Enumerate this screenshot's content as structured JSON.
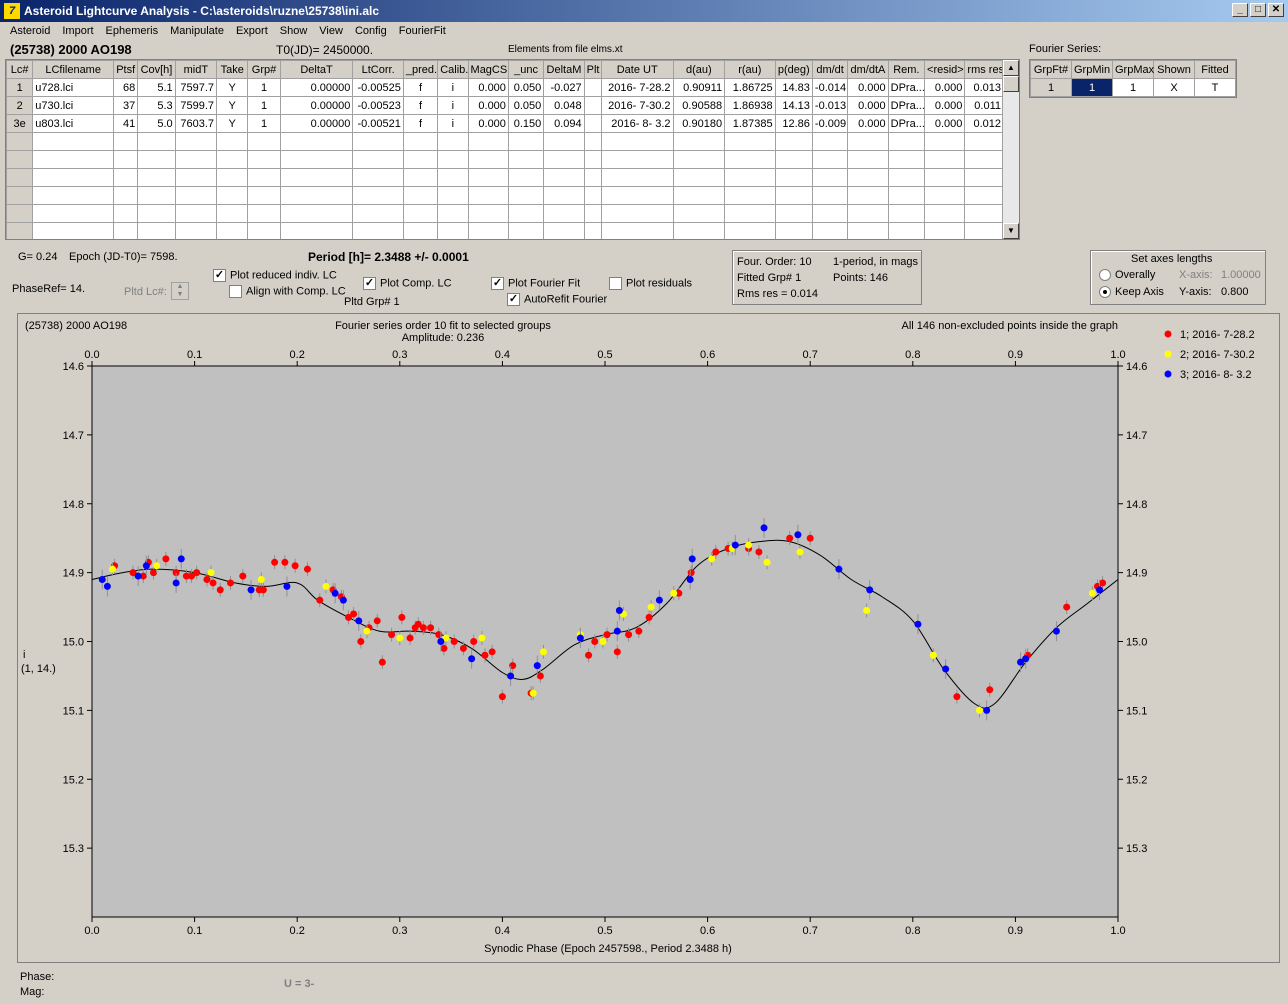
{
  "window": {
    "title": "Asteroid Lightcurve Analysis - C:\\asteroids\\ruzne\\25738\\ini.alc",
    "min": "_",
    "max": "□",
    "close": "✕"
  },
  "menu": [
    "Asteroid",
    "Import",
    "Ephemeris",
    "Manipulate",
    "Export",
    "Show",
    "View",
    "Config",
    "FourierFit"
  ],
  "header": {
    "asteroid": "(25738) 2000 AO198",
    "t0": "T0(JD)= 2450000.",
    "elements": "Elements from file elms.xt"
  },
  "table": {
    "columns": [
      "Lc#",
      "LCfilename",
      "Ptsf",
      "Cov[h]",
      "midT",
      "Take",
      "Grp#",
      "DeltaT",
      "LtCorr.",
      "_pred.",
      "Calib.",
      "MagCS",
      "_unc",
      "DeltaM",
      "Plt",
      "Date UT",
      "d(au)",
      "r(au)",
      "p(deg)",
      "dm/dt",
      "dm/dtA",
      "Rem.",
      "<resid>",
      "rms res"
    ],
    "rows": [
      [
        "1",
        "u728.lci",
        "68",
        "5.1",
        "7597.7",
        "Y",
        "1",
        "0.00000",
        "-0.00525",
        "f",
        "i",
        "0.000",
        "0.050",
        "-0.027",
        "",
        "2016- 7-28.2",
        "0.90911",
        "1.86725",
        "14.83",
        "-0.014",
        "0.000",
        "DPra...",
        "0.000",
        "0.013"
      ],
      [
        "2",
        "u730.lci",
        "37",
        "5.3",
        "7599.7",
        "Y",
        "1",
        "0.00000",
        "-0.00523",
        "f",
        "i",
        "0.000",
        "0.050",
        "0.048",
        "",
        "2016- 7-30.2",
        "0.90588",
        "1.86938",
        "14.13",
        "-0.013",
        "0.000",
        "DPra...",
        "0.000",
        "0.011"
      ],
      [
        "3e",
        "u803.lci",
        "41",
        "5.0",
        "7603.7",
        "Y",
        "1",
        "0.00000",
        "-0.00521",
        "f",
        "i",
        "0.000",
        "0.150",
        "0.094",
        "",
        "2016- 8- 3.2",
        "0.90180",
        "1.87385",
        "12.86",
        "-0.009",
        "0.000",
        "DPra...",
        "0.000",
        "0.012"
      ]
    ]
  },
  "fourier": {
    "label": "Fourier Series:",
    "columns": [
      "GrpFt#",
      "GrpMin",
      "GrpMax",
      "Shown",
      "Fitted"
    ],
    "row": [
      "1",
      "1",
      "1",
      "X",
      "T"
    ]
  },
  "controls": {
    "g": "G= 0.24",
    "epoch": "Epoch (JD-T0)= 7598.",
    "period": "Period [h]= 2.3488 +/- 0.0001",
    "phaseref": "PhaseRef= 14.",
    "pltdlc": "Pltd Lc#:",
    "pltdgrp": "Pltd Grp#  1",
    "plot_reduced": "Plot reduced indiv. LC",
    "align": "Align with Comp. LC",
    "plot_comp": "Plot Comp. LC",
    "plot_fourier": "Plot Fourier Fit",
    "autorefit": "AutoRefit Fourier",
    "plot_residuals": "Plot residuals",
    "four_order": "Four. Order: 10",
    "one_period": "1-period, in mags",
    "fitted_grp": "Fitted Grp# 1",
    "points": "Points: 146",
    "rms": "Rms res     = 0.014",
    "axes_title": "Set axes lengths",
    "overally": "Overally",
    "keep_axis": "Keep Axis",
    "x_axis_label": "X-axis:",
    "x_axis_val": "1.00000",
    "y_axis_label": "Y-axis:",
    "y_axis_val": "0.800"
  },
  "graph": {
    "title_left": "(25738) 2000 AO198",
    "title_center": "Fourier series order 10 fit to selected groups",
    "amplitude": "Amplitude: 0.236",
    "title_right": "All 146 non-excluded points inside the graph",
    "ylabel": "i",
    "ylabel2": "(1, 14.)",
    "xlabel": "Synodic Phase (Epoch 2457598., Period 2.3488 h)"
  },
  "footer": {
    "phase": "Phase:",
    "mag": "Mag:",
    "u": "U = 3-"
  },
  "chart_data": {
    "type": "scatter",
    "xlim": [
      0,
      1
    ],
    "ylim": [
      15.4,
      14.6
    ],
    "y_inverted": true,
    "xticks": [
      0.0,
      0.1,
      0.2,
      0.3,
      0.4,
      0.5,
      0.6,
      0.7,
      0.8,
      0.9,
      1.0
    ],
    "xticklabels": [
      "0.0",
      "0.1",
      "0.2",
      "0.3",
      "0.4",
      "0.5",
      "0.6",
      "0.7",
      "0.8",
      "0.9",
      "1.0"
    ],
    "yticks": [
      14.6,
      14.7,
      14.8,
      14.9,
      15.0,
      15.1,
      15.2,
      15.3
    ],
    "yticklabels": [
      "14.6",
      "14.7",
      "14.8",
      "14.9",
      "15.0",
      "15.1",
      "15.2",
      "15.3"
    ],
    "legend_position": "right",
    "series": [
      {
        "name": "1; 2016- 7-28.2",
        "color": "#ff0000",
        "points": [
          [
            0.022,
            14.89
          ],
          [
            0.04,
            14.9
          ],
          [
            0.05,
            14.905
          ],
          [
            0.055,
            14.885
          ],
          [
            0.06,
            14.9
          ],
          [
            0.072,
            14.88
          ],
          [
            0.082,
            14.9
          ],
          [
            0.092,
            14.905
          ],
          [
            0.097,
            14.905
          ],
          [
            0.102,
            14.9
          ],
          [
            0.112,
            14.91
          ],
          [
            0.118,
            14.915
          ],
          [
            0.125,
            14.925
          ],
          [
            0.135,
            14.915
          ],
          [
            0.147,
            14.905
          ],
          [
            0.163,
            14.925
          ],
          [
            0.167,
            14.925
          ],
          [
            0.178,
            14.885
          ],
          [
            0.188,
            14.885
          ],
          [
            0.198,
            14.89
          ],
          [
            0.21,
            14.895
          ],
          [
            0.222,
            14.94
          ],
          [
            0.235,
            14.925
          ],
          [
            0.243,
            14.935
          ],
          [
            0.25,
            14.965
          ],
          [
            0.255,
            14.96
          ],
          [
            0.262,
            15.0
          ],
          [
            0.27,
            14.98
          ],
          [
            0.278,
            14.97
          ],
          [
            0.283,
            15.03
          ],
          [
            0.292,
            14.99
          ],
          [
            0.302,
            14.965
          ],
          [
            0.31,
            14.995
          ],
          [
            0.315,
            14.98
          ],
          [
            0.318,
            14.975
          ],
          [
            0.323,
            14.98
          ],
          [
            0.33,
            14.98
          ],
          [
            0.338,
            14.99
          ],
          [
            0.343,
            15.01
          ],
          [
            0.353,
            15.0
          ],
          [
            0.362,
            15.01
          ],
          [
            0.372,
            15.0
          ],
          [
            0.383,
            15.02
          ],
          [
            0.39,
            15.015
          ],
          [
            0.4,
            15.08
          ],
          [
            0.41,
            15.035
          ],
          [
            0.428,
            15.075
          ],
          [
            0.437,
            15.05
          ],
          [
            0.484,
            15.02
          ],
          [
            0.49,
            15.0
          ],
          [
            0.502,
            14.99
          ],
          [
            0.512,
            15.015
          ],
          [
            0.523,
            14.99
          ],
          [
            0.533,
            14.985
          ],
          [
            0.543,
            14.965
          ],
          [
            0.572,
            14.93
          ],
          [
            0.584,
            14.9
          ],
          [
            0.608,
            14.87
          ],
          [
            0.62,
            14.865
          ],
          [
            0.64,
            14.865
          ],
          [
            0.65,
            14.87
          ],
          [
            0.68,
            14.85
          ],
          [
            0.7,
            14.85
          ],
          [
            0.843,
            15.08
          ],
          [
            0.875,
            15.07
          ],
          [
            0.912,
            15.02
          ],
          [
            0.95,
            14.95
          ],
          [
            0.98,
            14.92
          ],
          [
            0.985,
            14.915
          ]
        ]
      },
      {
        "name": "2; 2016- 7-30.2",
        "color": "#ffff00",
        "points": [
          [
            0.02,
            14.895
          ],
          [
            0.063,
            14.89
          ],
          [
            0.116,
            14.9
          ],
          [
            0.165,
            14.91
          ],
          [
            0.228,
            14.92
          ],
          [
            0.268,
            14.985
          ],
          [
            0.3,
            14.995
          ],
          [
            0.345,
            14.995
          ],
          [
            0.38,
            14.995
          ],
          [
            0.43,
            15.075
          ],
          [
            0.44,
            15.015
          ],
          [
            0.476,
            14.99
          ],
          [
            0.498,
            15.0
          ],
          [
            0.518,
            14.96
          ],
          [
            0.545,
            14.95
          ],
          [
            0.567,
            14.93
          ],
          [
            0.604,
            14.88
          ],
          [
            0.624,
            14.865
          ],
          [
            0.64,
            14.86
          ],
          [
            0.658,
            14.885
          ],
          [
            0.69,
            14.87
          ],
          [
            0.755,
            14.955
          ],
          [
            0.82,
            15.02
          ],
          [
            0.865,
            15.1
          ],
          [
            0.975,
            14.93
          ]
        ]
      },
      {
        "name": "3; 2016- 8- 3.2",
        "color": "#0000ff",
        "points": [
          [
            0.01,
            14.91
          ],
          [
            0.015,
            14.92
          ],
          [
            0.045,
            14.905
          ],
          [
            0.053,
            14.89
          ],
          [
            0.082,
            14.915
          ],
          [
            0.087,
            14.88
          ],
          [
            0.155,
            14.925
          ],
          [
            0.19,
            14.92
          ],
          [
            0.237,
            14.93
          ],
          [
            0.245,
            14.94
          ],
          [
            0.26,
            14.97
          ],
          [
            0.34,
            15.0
          ],
          [
            0.37,
            15.025
          ],
          [
            0.408,
            15.05
          ],
          [
            0.434,
            15.035
          ],
          [
            0.476,
            14.995
          ],
          [
            0.512,
            14.985
          ],
          [
            0.514,
            14.955
          ],
          [
            0.553,
            14.94
          ],
          [
            0.583,
            14.91
          ],
          [
            0.585,
            14.88
          ],
          [
            0.627,
            14.86
          ],
          [
            0.655,
            14.835
          ],
          [
            0.688,
            14.845
          ],
          [
            0.728,
            14.895
          ],
          [
            0.758,
            14.925
          ],
          [
            0.805,
            14.975
          ],
          [
            0.832,
            15.04
          ],
          [
            0.872,
            15.1
          ],
          [
            0.905,
            15.03
          ],
          [
            0.91,
            15.025
          ],
          [
            0.94,
            14.985
          ],
          [
            0.982,
            14.925
          ]
        ]
      }
    ],
    "fit_curve": [
      [
        0.0,
        14.91
      ],
      [
        0.03,
        14.9
      ],
      [
        0.06,
        14.895
      ],
      [
        0.1,
        14.9
      ],
      [
        0.14,
        14.915
      ],
      [
        0.17,
        14.92
      ],
      [
        0.2,
        14.915
      ],
      [
        0.22,
        14.94
      ],
      [
        0.25,
        14.965
      ],
      [
        0.28,
        14.985
      ],
      [
        0.31,
        14.985
      ],
      [
        0.34,
        14.99
      ],
      [
        0.37,
        15.01
      ],
      [
        0.4,
        15.045
      ],
      [
        0.42,
        15.055
      ],
      [
        0.44,
        15.04
      ],
      [
        0.47,
        15.005
      ],
      [
        0.5,
        14.99
      ],
      [
        0.53,
        14.98
      ],
      [
        0.56,
        14.945
      ],
      [
        0.59,
        14.89
      ],
      [
        0.62,
        14.865
      ],
      [
        0.65,
        14.855
      ],
      [
        0.68,
        14.855
      ],
      [
        0.71,
        14.875
      ],
      [
        0.74,
        14.91
      ],
      [
        0.77,
        14.935
      ],
      [
        0.8,
        14.97
      ],
      [
        0.83,
        15.04
      ],
      [
        0.86,
        15.09
      ],
      [
        0.88,
        15.09
      ],
      [
        0.91,
        15.03
      ],
      [
        0.94,
        14.98
      ],
      [
        0.97,
        14.945
      ],
      [
        1.0,
        14.91
      ]
    ]
  }
}
